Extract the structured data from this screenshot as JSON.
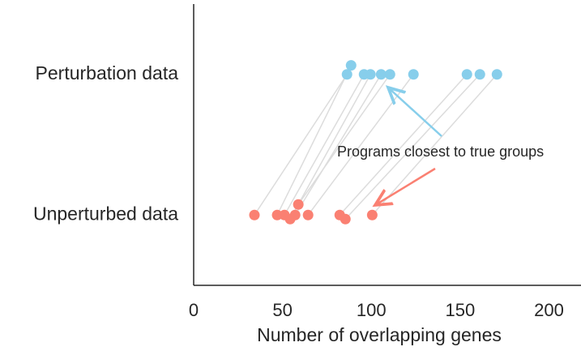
{
  "chart_data": {
    "type": "scatter",
    "xlabel": "Number of overlapping genes",
    "xlim": [
      0,
      218
    ],
    "xticks": [
      0,
      50,
      100,
      150,
      200
    ],
    "ylim": [
      -0.5,
      1.5
    ],
    "yticks": [
      {
        "value": 0,
        "label": "Unperturbed data"
      },
      {
        "value": 1,
        "label": "Perturbation data"
      }
    ],
    "series": [
      {
        "color": "#87ceeb",
        "x": [
          86.3,
          88.6,
          95.9,
          99.5,
          105.5,
          110.5,
          123.7,
          153.8,
          161.1,
          170.7
        ],
        "y": [
          1,
          1.064,
          1,
          1,
          1,
          1,
          1,
          1,
          1,
          1
        ]
      },
      {
        "color": "#fa8072",
        "x": [
          34.2,
          47.0,
          51.1,
          54.3,
          57.1,
          58.9,
          64.4,
          82.2,
          85.4,
          100.5
        ],
        "y": [
          0,
          0,
          0,
          -0.029,
          0,
          0.075,
          0,
          0,
          -0.029,
          0
        ]
      }
    ],
    "annotation": "Programs closest to true groups"
  }
}
